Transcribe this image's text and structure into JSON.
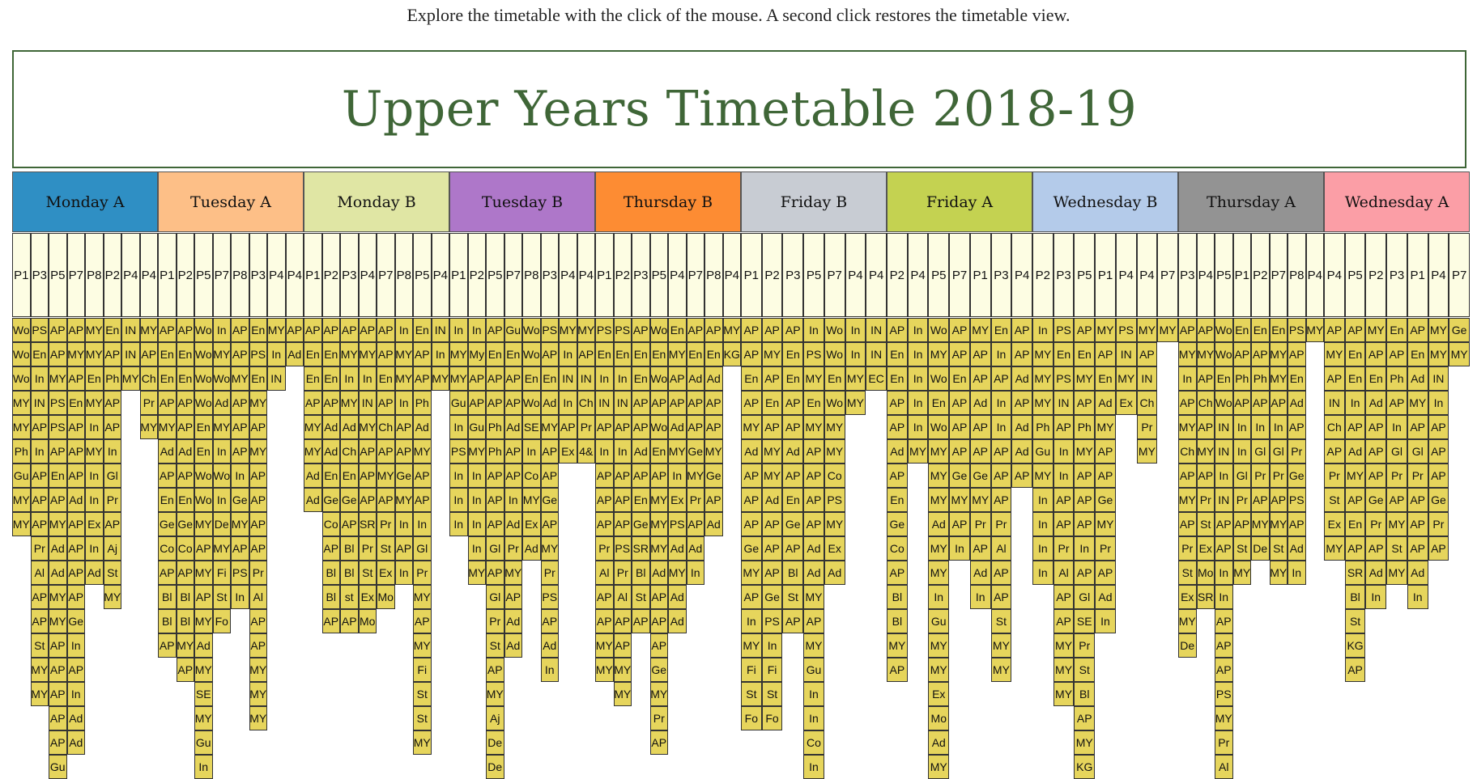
{
  "intro": "Explore the timetable with the click of the mouse. A second click restores the timetable view.",
  "title": "Upper Years Timetable 2018-19",
  "colors": {
    "title": "#3f6637",
    "cell": "#e6d55c",
    "period_bg": "#fdfde3"
  },
  "days": [
    {
      "label": "Monday A",
      "color": "#2f8fc4",
      "periods": [
        "P1",
        "P3",
        "P5",
        "P7",
        "P8",
        "P2",
        "P4",
        "P4"
      ],
      "columns": [
        [
          "Wo",
          "Wo",
          "Wo",
          "MY",
          "MY",
          "Ph",
          "Gu",
          "MY",
          "MY"
        ],
        [
          "PS",
          "En",
          "In",
          "IN",
          "AP",
          "In",
          "AP",
          "AP",
          "AP",
          "Pr",
          "Al",
          "AP",
          "AP",
          "St",
          "MY",
          "MY"
        ],
        [
          "AP",
          "AP",
          "MY",
          "PS",
          "PS",
          "AP",
          "En",
          "AP",
          "MY",
          "Ad",
          "Ad",
          "MY",
          "MY",
          "AP",
          "AP",
          "AP",
          "AP",
          "AP",
          "Gu"
        ],
        [
          "AP",
          "MY",
          "AP",
          "En",
          "AP",
          "AP",
          "AP",
          "Ad",
          "AP",
          "AP",
          "AP",
          "AP",
          "Ge",
          "In",
          "AP",
          "In",
          "Ad",
          "Ad"
        ],
        [
          "MY",
          "MY",
          "En",
          "MY",
          "In",
          "MY",
          "In",
          "In",
          "Ex",
          "In",
          "Ad"
        ],
        [
          "En",
          "AP",
          "Ph",
          "AP",
          "AP",
          "In",
          "Gl",
          "Pr",
          "AP",
          "Aj",
          "St",
          "MY"
        ],
        [
          "IN",
          "IN",
          "MY"
        ],
        [
          "MY",
          "AP",
          "Ch",
          "Pr",
          "MY"
        ]
      ]
    },
    {
      "label": "Tuesday A",
      "color": "#fdbf87",
      "periods": [
        "P1",
        "P2",
        "P5",
        "P7",
        "P8",
        "P3",
        "P4",
        "P4"
      ],
      "columns": [
        [
          "AP",
          "En",
          "En",
          "AP",
          "MY",
          "Ad",
          "AP",
          "En",
          "Ge",
          "Co",
          "AP",
          "Bl",
          "Bl",
          "AP"
        ],
        [
          "AP",
          "En",
          "En",
          "AP",
          "AP",
          "Ad",
          "AP",
          "En",
          "Ge",
          "Co",
          "AP",
          "Bl",
          "Bl",
          "MY",
          "AP"
        ],
        [
          "Wo",
          "Wo",
          "Wo",
          "Wo",
          "En",
          "En",
          "Wo",
          "Wo",
          "MY",
          "AP",
          "MY",
          "AP",
          "MY",
          "Ad",
          "MY",
          "SE",
          "MY",
          "Gu",
          "In"
        ],
        [
          "In",
          "MY",
          "Wo",
          "Ad",
          "MY",
          "In",
          "Wo",
          "In",
          "De",
          "MY",
          "Fi",
          "St",
          "Fo"
        ],
        [
          "AP",
          "AP",
          "MY",
          "AP",
          "AP",
          "AP",
          "In",
          "Ge",
          "MY",
          "AP",
          "PS",
          "In"
        ],
        [
          "En",
          "PS",
          "En",
          "MY",
          "AP",
          "MY",
          "AP",
          "AP",
          "AP",
          "AP",
          "Pr",
          "Al",
          "AP",
          "AP",
          "MY",
          "MY",
          "MY"
        ],
        [
          "MY",
          "In",
          "IN"
        ],
        [
          "AP",
          "Ad"
        ]
      ]
    },
    {
      "label": "Monday B",
      "color": "#e0e6a4",
      "periods": [
        "P1",
        "P2",
        "P3",
        "P4",
        "P7",
        "P8",
        "P5",
        "P4"
      ],
      "columns": [
        [
          "AP",
          "En",
          "En",
          "AP",
          "MY",
          "MY",
          "Ad",
          "Ad"
        ],
        [
          "AP",
          "En",
          "En",
          "AP",
          "Ad",
          "Ad",
          "En",
          "Ge",
          "Co",
          "AP",
          "Bl",
          "Bl",
          "AP"
        ],
        [
          "AP",
          "MY",
          "In",
          "MY",
          "Ad",
          "Ch",
          "En",
          "Ge",
          "AP",
          "Bl",
          "Bl",
          "st",
          "AP"
        ],
        [
          "AP",
          "MY",
          "In",
          "IN",
          "MY",
          "AP",
          "AP",
          "AP",
          "SR",
          "Pr",
          "St",
          "Ex",
          "Mo"
        ],
        [
          "AP",
          "AP",
          "En",
          "AP",
          "Ch",
          "AP",
          "MY",
          "AP",
          "Pr",
          "St",
          "Ex",
          "Mo"
        ],
        [
          "In",
          "MY",
          "MY",
          "In",
          "AP",
          "AP",
          "Ge",
          "MY",
          "In",
          "AP",
          "In"
        ],
        [
          "En",
          "AP",
          "AP",
          "Ph",
          "Ad",
          "MY",
          "AP",
          "AP",
          "In",
          "Gl",
          "Pr",
          "MY",
          "AP",
          "MY",
          "Fi",
          "St",
          "St",
          "MY"
        ],
        [
          "IN",
          "In",
          "MY"
        ]
      ]
    },
    {
      "label": "Tuesday B",
      "color": "#ae77c9",
      "periods": [
        "P1",
        "P2",
        "P5",
        "P7",
        "P8",
        "P3",
        "P4",
        "P4"
      ],
      "columns": [
        [
          "In",
          "MY",
          "MY",
          "Gu",
          "In",
          "PS",
          "In",
          "In",
          "In"
        ],
        [
          "In",
          "My",
          "AP",
          "AP",
          "Gu",
          "MY",
          "In",
          "In",
          "In",
          "In",
          "MY"
        ],
        [
          "AP",
          "En",
          "AP",
          "AP",
          "Ph",
          "Ph",
          "AP",
          "AP",
          "AP",
          "Gl",
          "AP",
          "Gl",
          "Pr",
          "St",
          "AP",
          "MY",
          "Aj",
          "De",
          "De"
        ],
        [
          "Gu",
          "En",
          "AP",
          "AP",
          "Ad",
          "AP",
          "AP",
          "In",
          "Ad",
          "Pr",
          "MY",
          "AP",
          "Ad",
          "Ad"
        ],
        [
          "Wo",
          "Wo",
          "En",
          "Wo",
          "SE",
          "In",
          "Co",
          "MY",
          "Ex",
          "Ad"
        ],
        [
          "PS",
          "AP",
          "En",
          "Ad",
          "MY",
          "AP",
          "AP",
          "Ge",
          "AP",
          "MY",
          "Pr",
          "PS",
          "AP",
          "Ad",
          "In"
        ],
        [
          "MY",
          "In",
          "IN",
          "In",
          "AP",
          "Ex"
        ],
        [
          "MY",
          "AP",
          "IN",
          "Ch",
          "Pr",
          "4&"
        ]
      ]
    },
    {
      "label": "Thursday B",
      "color": "#fd8c33",
      "periods": [
        "P1",
        "P2",
        "P3",
        "P5",
        "P4",
        "P7",
        "P8",
        "P4"
      ],
      "columns": [
        [
          "PS",
          "En",
          "In",
          "IN",
          "AP",
          "In",
          "AP",
          "AP",
          "AP",
          "Pr",
          "Al",
          "AP",
          "AP",
          "MY",
          "MY"
        ],
        [
          "PS",
          "En",
          "In",
          "IN",
          "AP",
          "In",
          "AP",
          "AP",
          "AP",
          "PS",
          "Pr",
          "Al",
          "AP",
          "AP",
          "MY",
          "MY"
        ],
        [
          "AP",
          "En",
          "En",
          "AP",
          "AP",
          "Ad",
          "AP",
          "En",
          "Ge",
          "SR",
          "Bl",
          "St",
          "AP"
        ],
        [
          "Wo",
          "En",
          "Wo",
          "AP",
          "Wo",
          "En",
          "AP",
          "MY",
          "MY",
          "MY",
          "Ad",
          "AP",
          "AP",
          "AP",
          "Ge",
          "MY",
          "Pr",
          "AP"
        ],
        [
          "En",
          "MY",
          "AP",
          "AP",
          "Ad",
          "MY",
          "In",
          "Ex",
          "PS",
          "Ad",
          "MY",
          "Ad",
          "Ad"
        ],
        [
          "AP",
          "En",
          "Ad",
          "AP",
          "AP",
          "Ge",
          "MY",
          "Pr",
          "AP",
          "Ad",
          "In"
        ],
        [
          "AP",
          "En",
          "Ad",
          "AP",
          "AP",
          "MY",
          "Ge",
          "AP",
          "Ad"
        ],
        [
          "MY",
          "KG"
        ]
      ]
    },
    {
      "label": "Friday B",
      "color": "#c8ccd3",
      "periods": [
        "P1",
        "P2",
        "P3",
        "P5",
        "P7",
        "P4",
        "P4"
      ],
      "columns": [
        [
          "AP",
          "AP",
          "En",
          "AP",
          "MY",
          "Ad",
          "AP",
          "AP",
          "AP",
          "Ge",
          "MY",
          "AP",
          "In",
          "MY",
          "Fi",
          "St",
          "Fo"
        ],
        [
          "AP",
          "MY",
          "AP",
          "En",
          "AP",
          "MY",
          "MY",
          "Ad",
          "AP",
          "AP",
          "AP",
          "Ge",
          "PS",
          "In",
          "Fi",
          "St",
          "Fo"
        ],
        [
          "AP",
          "En",
          "En",
          "AP",
          "AP",
          "Ad",
          "AP",
          "En",
          "Ge",
          "AP",
          "Bl",
          "St",
          "AP"
        ],
        [
          "In",
          "PS",
          "MY",
          "En",
          "MY",
          "AP",
          "AP",
          "AP",
          "AP",
          "Ad",
          "Ad",
          "MY",
          "AP",
          "MY",
          "Gu",
          "In",
          "In",
          "Co",
          "In"
        ],
        [
          "Wo",
          "Wo",
          "En",
          "Wo",
          "MY",
          "MY",
          "Co",
          "PS",
          "MY",
          "Ex",
          "Ad"
        ],
        [
          "In",
          "In",
          "MY",
          "MY"
        ],
        [
          "IN",
          "IN",
          "EC"
        ]
      ]
    },
    {
      "label": "Friday A",
      "color": "#c4d251",
      "periods": [
        "P2",
        "P4",
        "P5",
        "P7",
        "P1",
        "P3",
        "P4"
      ],
      "columns": [
        [
          "AP",
          "En",
          "En",
          "AP",
          "AP",
          "Ad",
          "AP",
          "En",
          "Ge",
          "Co",
          "AP",
          "Bl",
          "Bl",
          "MY",
          "AP"
        ],
        [
          "In",
          "In",
          "In",
          "In",
          "In",
          "MY"
        ],
        [
          "Wo",
          "MY",
          "Wo",
          "En",
          "Wo",
          "MY",
          "MY",
          "MY",
          "Ad",
          "MY",
          "MY",
          "In",
          "Gu",
          "MY",
          "MY",
          "Ex",
          "Mo",
          "Ad",
          "MY"
        ],
        [
          "AP",
          "AP",
          "En",
          "AP",
          "AP",
          "AP",
          "Ge",
          "MY",
          "AP",
          "In"
        ],
        [
          "MY",
          "AP",
          "AP",
          "Ad",
          "AP",
          "AP",
          "Ge",
          "MY",
          "Pr",
          "AP",
          "Ad",
          "In"
        ],
        [
          "En",
          "In",
          "AP",
          "In",
          "In",
          "AP",
          "AP",
          "AP",
          "Pr",
          "Al",
          "AP",
          "AP",
          "St",
          "MY",
          "MY"
        ],
        [
          "AP",
          "AP",
          "Ad",
          "AP",
          "Ad",
          "Ad",
          "AP"
        ]
      ]
    },
    {
      "label": "Wednesday B",
      "color": "#b4cbea",
      "periods": [
        "P2",
        "P3",
        "P5",
        "P1",
        "P4",
        "P4",
        "P7"
      ],
      "columns": [
        [
          "In",
          "MY",
          "MY",
          "MY",
          "Ph",
          "Gu",
          "MY",
          "In",
          "In",
          "In",
          "In"
        ],
        [
          "PS",
          "En",
          "PS",
          "IN",
          "AP",
          "In",
          "In",
          "AP",
          "AP",
          "Pr",
          "Al",
          "AP",
          "AP",
          "MY",
          "MY",
          "MY"
        ],
        [
          "AP",
          "En",
          "MY",
          "AP",
          "Ph",
          "MY",
          "AP",
          "AP",
          "AP",
          "In",
          "AP",
          "Gl",
          "SE",
          "Pr",
          "St",
          "Bl",
          "AP",
          "MY",
          "KG"
        ],
        [
          "MY",
          "AP",
          "En",
          "Ad",
          "MY",
          "AP",
          "AP",
          "Ge",
          "MY",
          "Pr",
          "AP",
          "Ad",
          "In"
        ],
        [
          "PS",
          "IN",
          "MY",
          "Ex"
        ],
        [
          "MY",
          "AP",
          "IN",
          "Ch",
          "Pr",
          "MY"
        ],
        [
          "MY"
        ]
      ]
    },
    {
      "label": "Thursday A",
      "color": "#939393",
      "periods": [
        "P3",
        "P4",
        "P5",
        "P1",
        "P2",
        "P7",
        "P8",
        "P4"
      ],
      "columns": [
        [
          "AP",
          "MY",
          "In",
          "AP",
          "MY",
          "Ch",
          "AP",
          "MY",
          "AP",
          "Pr",
          "St",
          "Ex",
          "MY",
          "De"
        ],
        [
          "AP",
          "MY",
          "AP",
          "Ch",
          "AP",
          "MY",
          "AP",
          "Pr",
          "St",
          "Ex",
          "Mo",
          "SR"
        ],
        [
          "Wo",
          "Wo",
          "En",
          "Wo",
          "IN",
          "IN",
          "In",
          "IN",
          "AP",
          "AP",
          "In",
          "In",
          "AP",
          "AP",
          "AP",
          "PS",
          "MY",
          "Pr",
          "Al"
        ],
        [
          "En",
          "AP",
          "Ph",
          "AP",
          "In",
          "In",
          "Gl",
          "Pr",
          "AP",
          "St",
          "MY"
        ],
        [
          "En",
          "AP",
          "Ph",
          "AP",
          "In",
          "Gl",
          "Pr",
          "AP",
          "MY",
          "De"
        ],
        [
          "En",
          "MY",
          "MY",
          "AP",
          "In",
          "Gl",
          "Pr",
          "AP",
          "MY",
          "St",
          "MY"
        ],
        [
          "PS",
          "AP",
          "En",
          "Ad",
          "AP",
          "Pr",
          "Ge",
          "PS",
          "AP",
          "Ad",
          "In"
        ],
        [
          "MY"
        ]
      ]
    },
    {
      "label": "Wednesday A",
      "color": "#fb9ea6",
      "periods": [
        "P4",
        "P5",
        "P2",
        "P3",
        "P1",
        "P4",
        "P7"
      ],
      "columns": [
        [
          "AP",
          "MY",
          "AP",
          "IN",
          "Ch",
          "AP",
          "Pr",
          "St",
          "Ex",
          "MY"
        ],
        [
          "AP",
          "En",
          "En",
          "In",
          "AP",
          "Ad",
          "MY",
          "AP",
          "En",
          "AP",
          "SR",
          "Bl",
          "St",
          "KG",
          "AP"
        ],
        [
          "MY",
          "AP",
          "En",
          "Ad",
          "AP",
          "AP",
          "AP",
          "Ge",
          "Pr",
          "AP",
          "Ad",
          "In"
        ],
        [
          "En",
          "AP",
          "Ph",
          "AP",
          "In",
          "Gl",
          "Pr",
          "AP",
          "MY",
          "St",
          "MY"
        ],
        [
          "AP",
          "En",
          "Ad",
          "MY",
          "AP",
          "Gl",
          "Pr",
          "AP",
          "AP",
          "AP",
          "Ad",
          "In"
        ],
        [
          "MY",
          "MY",
          "IN",
          "In",
          "AP",
          "AP",
          "AP",
          "Ge",
          "Pr",
          "AP"
        ],
        [
          "Ge",
          "MY"
        ]
      ]
    }
  ]
}
